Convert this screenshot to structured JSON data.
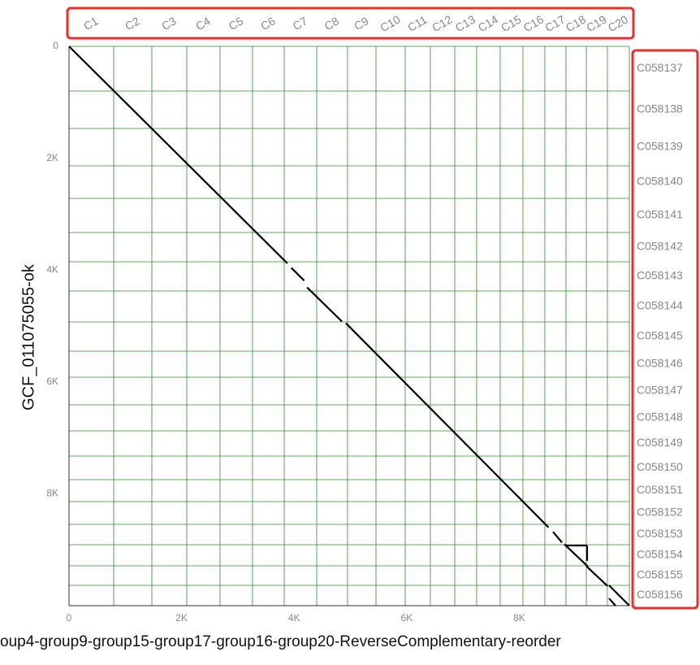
{
  "chart_data": {
    "type": "dotplot",
    "x_label": "oup4-group9-group15-group17-group16-group20-ReverseComplementary-reorder",
    "y_label": "GCF_011075055-ok",
    "xlim": [
      0,
      9957
    ],
    "ylim": [
      0,
      10000
    ],
    "xticks": [
      0,
      {
        "value": 2000,
        "label": "2K"
      },
      {
        "value": 4000,
        "label": "4K"
      },
      {
        "value": 6000,
        "label": "6K"
      },
      {
        "value": 8000,
        "label": "8K"
      }
    ],
    "yticks": [
      0,
      {
        "value": 2000,
        "label": "2K"
      },
      {
        "value": 4000,
        "label": "4K"
      },
      {
        "value": 6000,
        "label": "6K"
      },
      {
        "value": 8000,
        "label": "8K"
      }
    ],
    "x_categories": [
      "C1",
      "C2",
      "C3",
      "C4",
      "C5",
      "C6",
      "C7",
      "C8",
      "C9",
      "C10",
      "C11",
      "C12",
      "C13",
      "C14",
      "C15",
      "C16",
      "C17",
      "C18",
      "C19",
      "C20"
    ],
    "x_boundaries": [
      0,
      794,
      1472,
      2092,
      2684,
      3261,
      3824,
      4401,
      4949,
      5455,
      5974,
      6421,
      6854,
      7244,
      7662,
      8066,
      8456,
      8831,
      9192,
      9567,
      9957
    ],
    "y_categories": [
      "C058137",
      "C058138",
      "C058139",
      "C058140",
      "C058141",
      "C058142",
      "C058143",
      "C058144",
      "C058145",
      "C058146",
      "C058147",
      "C058148",
      "C058149",
      "C058150",
      "C058151",
      "C058152",
      "C058153",
      "C058154",
      "C058155",
      "C058156"
    ],
    "y_boundaries": [
      0,
      799,
      1468,
      2137,
      2718,
      3328,
      3852,
      4375,
      4927,
      5451,
      5916,
      6410,
      6875,
      7326,
      7747,
      8140,
      8547,
      8910,
      9288,
      9637,
      10000
    ],
    "grid_color": "#2e8b2e",
    "color": "#000000",
    "highlight_color": "#e8312a",
    "segments": [
      {
        "x": [
          0,
          3880
        ],
        "y": [
          0,
          3880
        ]
      },
      {
        "x": [
          3950,
          4180
        ],
        "y": [
          3960,
          4190
        ]
      },
      {
        "x": [
          4230,
          4850
        ],
        "y": [
          4310,
          4920
        ]
      },
      {
        "x": [
          4920,
          8520
        ],
        "y": [
          4950,
          8600
        ]
      },
      {
        "x": [
          8600,
          8760
        ],
        "y": [
          8680,
          8870
        ]
      },
      {
        "x": [
          8800,
          9220
        ],
        "y": [
          8900,
          9300
        ]
      },
      {
        "x": [
          9200,
          9570
        ],
        "y": [
          9300,
          9650
        ]
      },
      {
        "x": [
          8830,
          9206
        ],
        "y": [
          8925,
          8925
        ]
      },
      {
        "x": [
          9206,
          9206
        ],
        "y": [
          8925,
          9200
        ]
      },
      {
        "x": [
          9596,
          9957
        ],
        "y": [
          9637,
          10000
        ]
      },
      {
        "x": [
          9596,
          9711
        ],
        "y": [
          9870,
          10000
        ]
      }
    ]
  }
}
